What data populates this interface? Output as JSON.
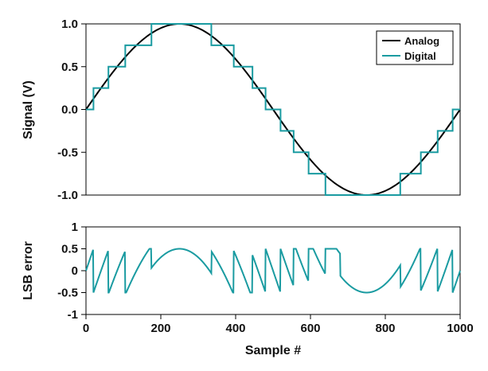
{
  "chart_data": [
    {
      "type": "line",
      "ylabel": "Signal (V)",
      "xlim": [
        0,
        1000
      ],
      "ylim": [
        -1.0,
        1.0
      ],
      "yticks": [
        "1.0",
        "0.5",
        "0.0",
        "-0.5",
        "-1.0"
      ],
      "grid": false,
      "legend": {
        "position": "top-right",
        "entries": [
          "Analog",
          "Digital"
        ]
      },
      "series": [
        {
          "name": "Analog",
          "color": "#000000",
          "function": "sin(2*pi*x/1000)",
          "x": [
            0,
            50,
            100,
            150,
            200,
            250,
            300,
            350,
            400,
            450,
            500,
            550,
            600,
            650,
            700,
            750,
            800,
            850,
            900,
            950,
            1000
          ],
          "y": [
            0,
            0.31,
            0.59,
            0.81,
            0.95,
            1.0,
            0.95,
            0.81,
            0.59,
            0.31,
            0,
            -0.31,
            -0.59,
            -0.81,
            -0.95,
            -1.0,
            -0.95,
            -0.81,
            -0.59,
            -0.31,
            0
          ]
        },
        {
          "name": "Digital",
          "color": "#1a9ba1",
          "step": "quantized to 0.25 V",
          "x": [
            0,
            20,
            20,
            60,
            60,
            105,
            105,
            175,
            175,
            335,
            335,
            395,
            395,
            445,
            445,
            480,
            480,
            520,
            520,
            555,
            555,
            595,
            595,
            640,
            640,
            680,
            680,
            840,
            840,
            895,
            895,
            940,
            940,
            980,
            980,
            1000
          ],
          "y": [
            0,
            0,
            0.25,
            0.25,
            0.5,
            0.5,
            0.75,
            0.75,
            1.0,
            1.0,
            0.75,
            0.75,
            0.5,
            0.5,
            0.25,
            0.25,
            0,
            0,
            -0.25,
            -0.25,
            -0.5,
            -0.5,
            -0.75,
            -0.75,
            -1.0,
            -1.0,
            -1.0,
            -1.0,
            -0.75,
            -0.75,
            -0.5,
            -0.5,
            -0.25,
            -0.25,
            0,
            0
          ]
        }
      ]
    },
    {
      "type": "line",
      "xlabel": "Sample #",
      "ylabel": "LSB error",
      "xlim": [
        0,
        1000
      ],
      "ylim": [
        -1,
        1
      ],
      "xticks": [
        "0",
        "200",
        "400",
        "600",
        "800",
        "1000"
      ],
      "yticks": [
        "1",
        "0.5",
        "0",
        "-0.5",
        "-1"
      ],
      "grid": false,
      "series": [
        {
          "color": "#1a9ba1",
          "description_values": "sawtooth error between -0.5 and 0.5",
          "x": [
            0,
            20,
            20,
            40,
            40,
            60,
            60,
            80,
            80,
            105,
            105,
            125,
            125,
            150,
            150,
            175,
            175,
            335,
            335,
            395,
            395,
            420,
            420,
            445,
            445,
            465,
            465,
            480,
            480,
            500,
            500,
            520,
            520,
            540,
            540,
            555,
            555,
            575,
            575,
            595,
            595,
            615,
            615,
            640,
            640,
            660,
            660,
            680,
            680,
            840,
            840,
            860,
            860,
            875,
            875,
            895,
            895,
            915,
            915,
            940,
            940,
            955,
            955,
            980,
            980,
            1000
          ],
          "y": [
            0,
            0.5,
            -0.5,
            0.5,
            -0.5,
            0.5,
            -0.5,
            0.5,
            -0.5,
            0.5,
            -0.5,
            0.5,
            -0.5,
            0.5,
            -0.5,
            0.5,
            -0.5,
            0.5,
            -0.5,
            0.5,
            -0.5,
            0.5,
            -0.5,
            0.5,
            -0.5,
            0.5,
            -0.5,
            0.5,
            -0.5,
            0.5,
            -0.5,
            0.5,
            -0.5,
            0.5,
            -0.5,
            0.5,
            -0.5,
            0.5,
            -0.5,
            0.5,
            -0.5,
            0.5,
            -0.5,
            0.5,
            -0.5,
            0.5,
            -0.5,
            0.5,
            -0.5,
            0.5,
            -0.5,
            0.5,
            -0.5,
            0.5,
            -0.5,
            0.5,
            -0.5,
            0.5,
            -0.5,
            0.5,
            -0.5,
            0.5,
            -0.5,
            0.5,
            -0.5,
            0
          ]
        }
      ]
    }
  ]
}
